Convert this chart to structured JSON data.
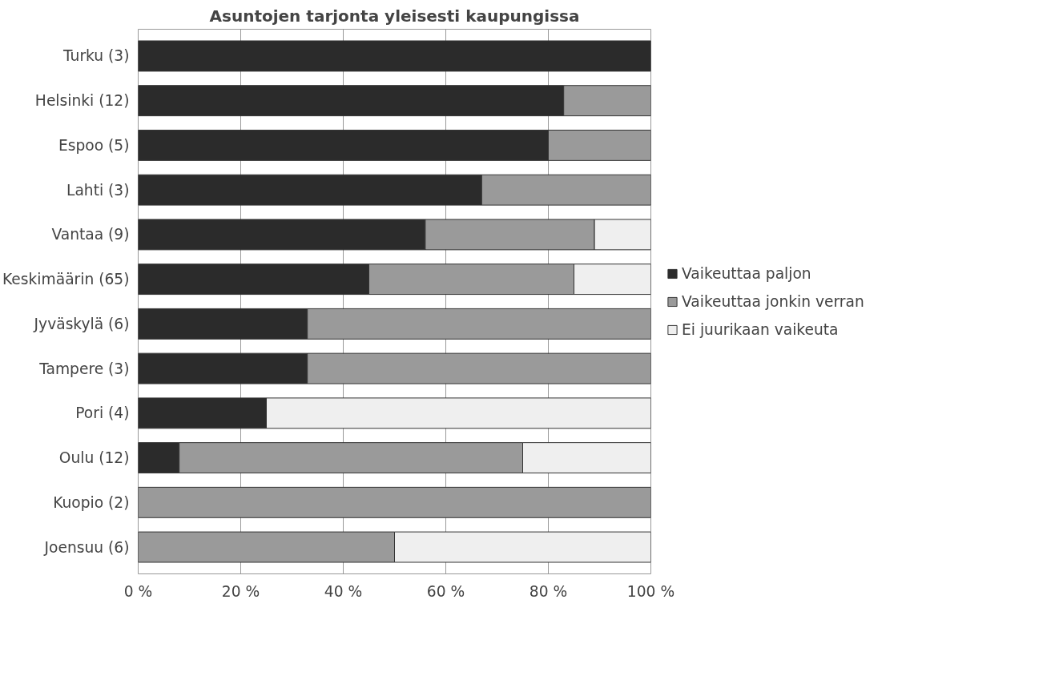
{
  "chart_data": {
    "type": "bar",
    "orientation": "horizontal",
    "stacked": true,
    "title": "Asuntojen tarjonta yleisesti kaupungissa",
    "categories": [
      "Turku (3)",
      "Helsinki (12)",
      "Espoo (5)",
      "Lahti (3)",
      "Vantaa (9)",
      "Keskimäärin (65)",
      "Jyväskylä (6)",
      "Tampere (3)",
      "Pori (4)",
      "Oulu (12)",
      "Kuopio (2)",
      "Joensuu (6)"
    ],
    "series": [
      {
        "name": "Vaikeuttaa paljon",
        "color": "#2b2b2b",
        "values": [
          100,
          83,
          80,
          67,
          56,
          45,
          33,
          33,
          25,
          8,
          0,
          0
        ]
      },
      {
        "name": "Vaikeuttaa jonkin verran",
        "color": "#9a9a9a",
        "values": [
          0,
          17,
          20,
          33,
          33,
          40,
          67,
          67,
          0,
          67,
          100,
          50
        ]
      },
      {
        "name": "Ei juurikaan vaikeuta",
        "color": "#efefef",
        "values": [
          0,
          0,
          0,
          0,
          11,
          15,
          0,
          0,
          75,
          25,
          0,
          50
        ]
      }
    ],
    "xlim": [
      0,
      100
    ],
    "xticks": [
      {
        "value": 0,
        "label": "0 %"
      },
      {
        "value": 20,
        "label": "20 %"
      },
      {
        "value": 40,
        "label": "40 %"
      },
      {
        "value": 60,
        "label": "60 %"
      },
      {
        "value": 80,
        "label": "80 %"
      },
      {
        "value": 100,
        "label": "100 %"
      }
    ],
    "grid": "x",
    "legend": "right"
  }
}
